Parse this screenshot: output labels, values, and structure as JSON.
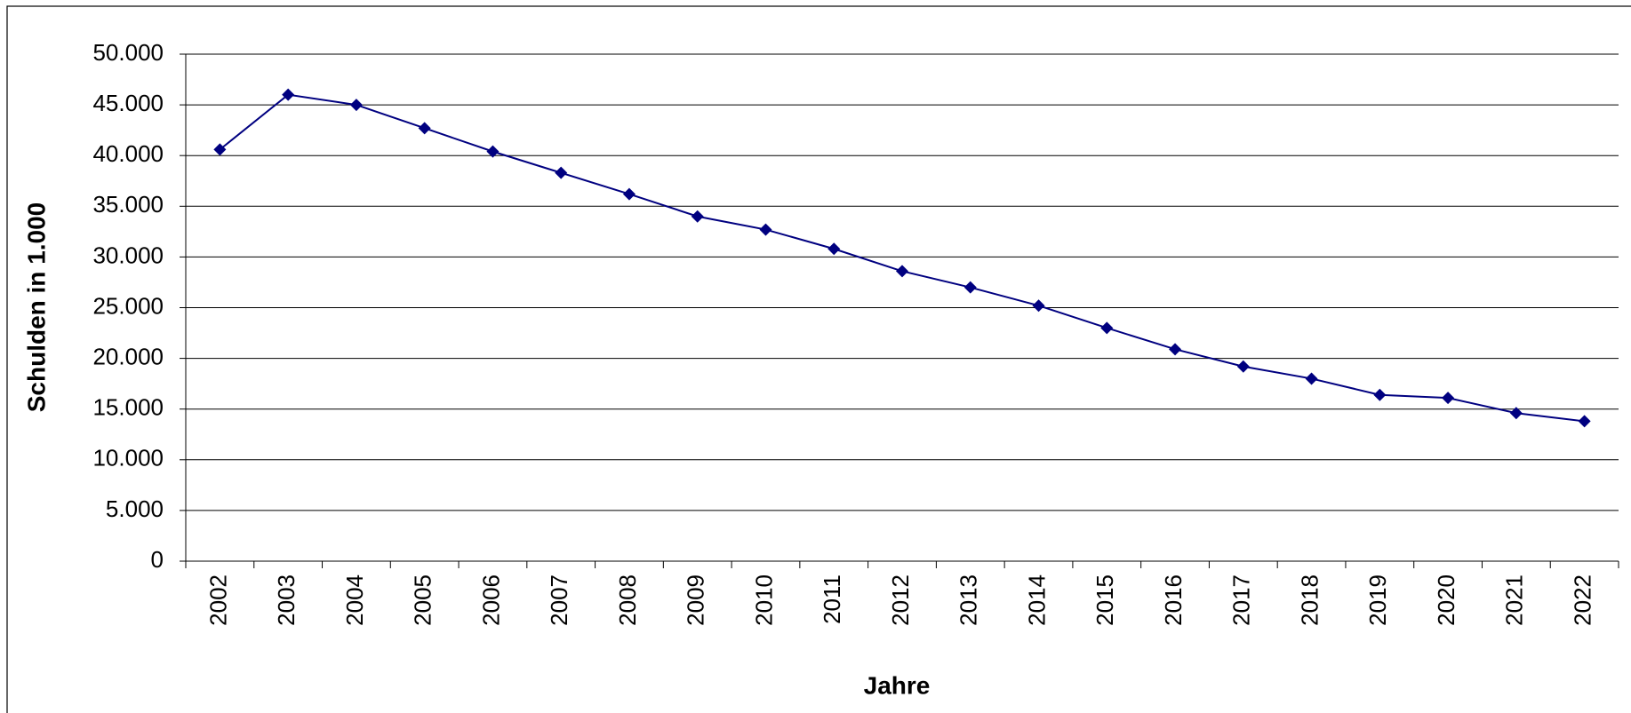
{
  "chart_data": {
    "type": "line",
    "x_label": "Jahre",
    "y_label": "Schulden in 1.000",
    "categories": [
      "2002",
      "2003",
      "2004",
      "2005",
      "2006",
      "2007",
      "2008",
      "2009",
      "2010",
      "2011",
      "2012",
      "2013",
      "2014",
      "2015",
      "2016",
      "2017",
      "2018",
      "2019",
      "2020",
      "2021",
      "2022"
    ],
    "series": [
      {
        "name": "Schulden",
        "color": "#000080",
        "values": [
          40600,
          46000,
          45000,
          42700,
          40400,
          38300,
          36200,
          34000,
          32700,
          30800,
          28600,
          27000,
          25200,
          23000,
          20900,
          19200,
          18000,
          16400,
          16100,
          14600,
          13800
        ]
      }
    ],
    "ylim": [
      0,
      50000
    ],
    "yticks": [
      0,
      {
        "value": 5000,
        "label": "5.000"
      },
      {
        "value": 10000,
        "label": "10.000"
      },
      {
        "value": 15000,
        "label": "15.000"
      },
      {
        "value": 20000,
        "label": "20.000"
      },
      {
        "value": 25000,
        "label": "25.000"
      },
      {
        "value": 30000,
        "label": "30.000"
      },
      {
        "value": 35000,
        "label": "35.000"
      },
      {
        "value": 40000,
        "label": "40.000"
      },
      {
        "value": 45000,
        "label": "45.000"
      },
      {
        "value": 50000,
        "label": "50.000"
      }
    ],
    "grid": true
  }
}
